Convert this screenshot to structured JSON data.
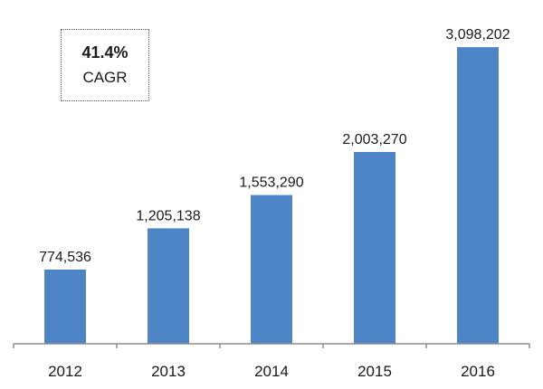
{
  "callout": {
    "value": "41.4%",
    "label": "CAGR"
  },
  "colors": {
    "bar": "#4e85c6",
    "axis": "#8c8c8c",
    "text": "#1a1a1a"
  },
  "chart_data": {
    "type": "bar",
    "title": "",
    "xlabel": "",
    "ylabel": "",
    "categories": [
      "2012",
      "2013",
      "2014",
      "2015",
      "2016"
    ],
    "values": [
      774536,
      1205138,
      1553290,
      2003270,
      3098202
    ],
    "value_labels": [
      "774,536",
      "1,205,138",
      "1,553,290",
      "2,003,270",
      "3,098,202"
    ],
    "ylim": [
      0,
      3250000
    ],
    "grid": false,
    "legend": "none"
  }
}
